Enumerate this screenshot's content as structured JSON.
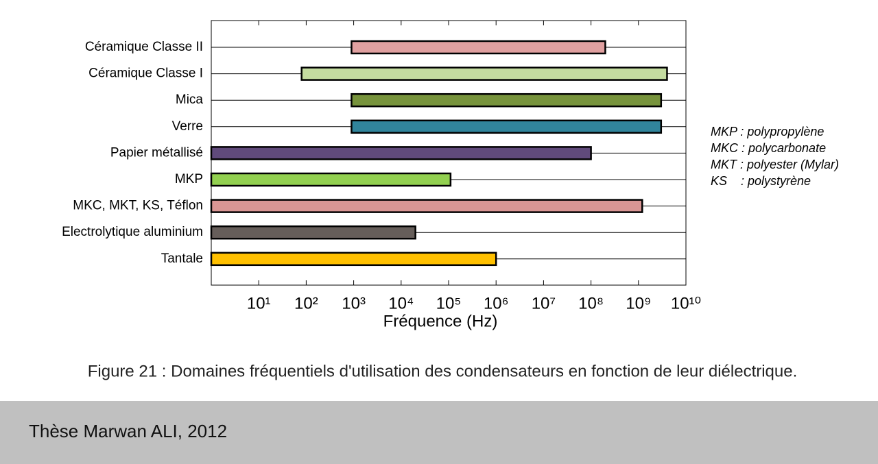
{
  "chart_data": {
    "type": "range-bar",
    "categories": [
      "Céramique Classe II",
      "Céramique Classe I",
      "Mica",
      "Verre",
      "Papier métallisé",
      "MKP",
      "MKC, MKT, KS, Téflon",
      "Electrolytique aluminium",
      "Tantale"
    ],
    "values": [
      [
        900,
        200000000
      ],
      [
        80,
        4000000000
      ],
      [
        900,
        3000000000
      ],
      [
        900,
        3000000000
      ],
      [
        1,
        100000000
      ],
      [
        1,
        110000
      ],
      [
        1,
        1200000000
      ],
      [
        1,
        20000
      ],
      [
        1,
        1000000
      ]
    ],
    "colors": [
      "#e0a0a0",
      "#c4dca0",
      "#77933c",
      "#31859c",
      "#604a7b",
      "#92d050",
      "#d99694",
      "#665e5a",
      "#ffc000"
    ],
    "x_label": "Fréquence (Hz)",
    "xscale": "log",
    "xlim": [
      1,
      10000000000
    ],
    "xticks": [
      {
        "value": 10,
        "label": "10¹"
      },
      {
        "value": 100,
        "label": "10²"
      },
      {
        "value": 1000,
        "label": "10³"
      },
      {
        "value": 10000,
        "label": "10⁴"
      },
      {
        "value": 100000,
        "label": "10⁵"
      },
      {
        "value": 1000000,
        "label": "10⁶"
      },
      {
        "value": 10000000,
        "label": "10⁷"
      },
      {
        "value": 100000000,
        "label": "10⁸"
      },
      {
        "value": 1000000000,
        "label": "10⁹"
      },
      {
        "value": 10000000000,
        "label": "10¹⁰"
      }
    ],
    "notes": [
      "MKP : polypropylène",
      "MKC : polycarbonate",
      "MKT : polyester (Mylar)",
      "KS    : polystyrène"
    ]
  },
  "caption": "Figure 21 : Domaines fréquentiels d'utilisation des condensateurs en fonction de leur diélectrique.",
  "footer": "Thèse Marwan ALI, 2012"
}
